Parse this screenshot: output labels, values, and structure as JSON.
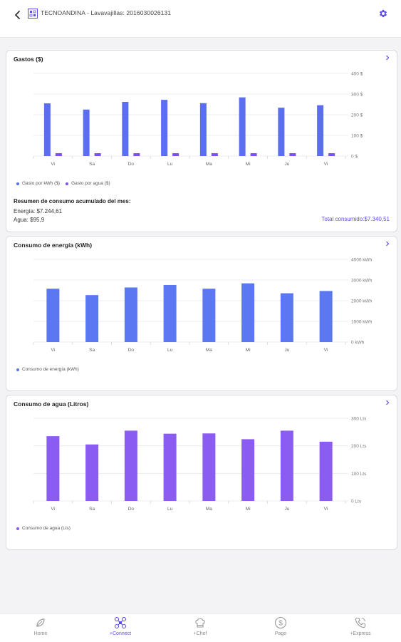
{
  "header": {
    "title": "TECNOANDINA - Lavavajillas: 2016030026131",
    "back_icon": "back-arrow-icon",
    "device_icon": "device-grid-icon",
    "settings_icon": "gear-icon",
    "accent": "#5b4ce6"
  },
  "cards": {
    "gastos": {
      "title": "Gastos ($)",
      "legend_kwh": "Gasto por kWh ($)",
      "legend_agua": "Gasto por agua ($)",
      "summary_title": "Resumen de consumo acumulado del mes:",
      "energia": "Energía: $7.244,61",
      "agua": "Agua: $95,9",
      "total": "Total consumido:$7.340,51"
    },
    "energia": {
      "title": "Consumo de energía (kWh)",
      "legend": "Consumo de energía (kWh)"
    },
    "agua": {
      "title": "Consumo de agua (Litros)",
      "legend": "Consumo de agua (Lts)"
    }
  },
  "chart_data": [
    {
      "type": "bar",
      "title": "Gastos ($)",
      "categories": [
        "Vi",
        "Sa",
        "Do",
        "Lu",
        "Ma",
        "Mi",
        "Ju",
        "Vi"
      ],
      "series": [
        {
          "name": "Gasto por kWh ($)",
          "color": "#5b6ef0",
          "values": [
            255,
            225,
            262,
            272,
            256,
            284,
            234,
            246
          ]
        },
        {
          "name": "Gasto por agua ($)",
          "color": "#7b52f0",
          "values": [
            4,
            3.6,
            4.2,
            4.0,
            4.0,
            3.6,
            4.2,
            3.6
          ]
        }
      ],
      "yticks": [
        "400 $",
        "300 $",
        "200 $",
        "100 $",
        "0 $"
      ],
      "ylim": [
        0,
        400
      ],
      "grid": true
    },
    {
      "type": "bar",
      "title": "Consumo de energía (kWh)",
      "categories": [
        "Vi",
        "Sa",
        "Do",
        "Lu",
        "Ma",
        "Mi",
        "Ju",
        "Vi"
      ],
      "series": [
        {
          "name": "Consumo de energía (kWh)",
          "color": "#5b78f2",
          "values": [
            2580,
            2270,
            2640,
            2760,
            2580,
            2840,
            2360,
            2470
          ]
        }
      ],
      "yticks": [
        "4000 kWh",
        "3000 kWh",
        "2000 kWh",
        "1000 kWh",
        "0 kWh"
      ],
      "ylim": [
        0,
        4000
      ],
      "grid": true
    },
    {
      "type": "bar",
      "title": "Consumo de agua (Litros)",
      "categories": [
        "Vi",
        "Sa",
        "Do",
        "Lu",
        "Ma",
        "Mi",
        "Ju",
        "Vi"
      ],
      "series": [
        {
          "name": "Consumo de agua (Lts)",
          "color": "#8a5cf2",
          "values": [
            235,
            205,
            255,
            244,
            245,
            224,
            255,
            215
          ]
        }
      ],
      "yticks": [
        "300 Lts",
        "200 Lts",
        "100 Lts",
        "0 Lts"
      ],
      "ylim": [
        0,
        300
      ],
      "grid": true
    }
  ],
  "nav": {
    "items": [
      {
        "label": "Home",
        "icon": "home-leaf-icon"
      },
      {
        "label": "+Connect",
        "icon": "drone-connect-icon"
      },
      {
        "label": "+Chef",
        "icon": "chef-hat-icon"
      },
      {
        "label": "Pago",
        "icon": "dollar-coin-icon"
      },
      {
        "label": "+Express",
        "icon": "phone-call-icon"
      }
    ]
  }
}
